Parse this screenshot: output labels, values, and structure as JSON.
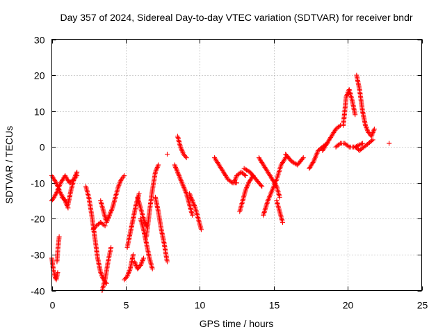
{
  "chart_data": {
    "type": "scatter",
    "title": "Day 357 of 2024, Sidereal Day-to-day VTEC variation (SDTVAR) for receiver bndr",
    "xlabel": "GPS time / hours",
    "ylabel": "SDTVAR / TECUs",
    "xlim": [
      0,
      25
    ],
    "ylim": [
      -40,
      30
    ],
    "x_ticks": [
      "0",
      "5",
      "10",
      "15",
      "20",
      "25"
    ],
    "y_ticks": [
      "-40",
      "-30",
      "-20",
      "-10",
      "0",
      "10",
      "20",
      "30"
    ],
    "x_tick_values": [
      0,
      5,
      10,
      15,
      20,
      25
    ],
    "y_tick_values": [
      -40,
      -30,
      -20,
      -10,
      0,
      10,
      20,
      30
    ],
    "grid": true,
    "marker": "+",
    "color": "#ff0000",
    "tracks": [
      {
        "x": [
          0.0,
          0.1,
          0.2,
          0.3,
          0.4
        ],
        "y": [
          -31,
          -34,
          -36,
          -37,
          -35
        ]
      },
      {
        "x": [
          0.35,
          0.42,
          0.5
        ],
        "y": [
          -32,
          -28,
          -25
        ]
      },
      {
        "x": [
          0.0,
          0.3,
          0.6,
          0.9,
          1.1
        ],
        "y": [
          -8,
          -10,
          -13,
          -15,
          -17
        ]
      },
      {
        "x": [
          0.0,
          0.3,
          0.6,
          0.9,
          1.2,
          1.5,
          1.7
        ],
        "y": [
          -15,
          -13,
          -10,
          -8,
          -10,
          -9,
          -8
        ]
      },
      {
        "x": [
          0.7,
          0.9,
          1.1,
          1.3,
          1.5,
          1.7
        ],
        "y": [
          -14,
          -15,
          -16,
          -12,
          -9,
          -7
        ]
      },
      {
        "x": [
          2.3,
          2.5,
          2.7,
          2.9,
          3.1,
          3.3,
          3.5,
          3.7
        ],
        "y": [
          -11,
          -14,
          -19,
          -25,
          -31,
          -35,
          -37,
          -38
        ]
      },
      {
        "x": [
          2.8,
          3.0,
          3.3,
          3.6
        ],
        "y": [
          -23,
          -22,
          -21,
          -22
        ]
      },
      {
        "x": [
          3.3,
          3.5,
          3.7,
          3.9,
          4.1,
          4.3,
          4.5,
          4.7,
          4.9
        ],
        "y": [
          -15,
          -18,
          -21,
          -19,
          -17,
          -14,
          -11,
          -9,
          -8
        ]
      },
      {
        "x": [
          3.4,
          3.6,
          3.8,
          4.0
        ],
        "y": [
          -40,
          -37,
          -32,
          -28
        ]
      },
      {
        "x": [
          4.9,
          5.1,
          5.3,
          5.5
        ],
        "y": [
          -37,
          -36,
          -34,
          -30
        ]
      },
      {
        "x": [
          5.1,
          5.3,
          5.5,
          5.7,
          5.9
        ],
        "y": [
          -28,
          -24,
          -20,
          -16,
          -13
        ]
      },
      {
        "x": [
          5.8,
          6.0,
          6.2,
          6.4
        ],
        "y": [
          -14,
          -17,
          -20,
          -22
        ]
      },
      {
        "x": [
          5.6,
          5.8,
          6.0,
          6.2
        ],
        "y": [
          -32,
          -34,
          -33,
          -31
        ]
      },
      {
        "x": [
          6.0,
          6.2,
          6.4,
          6.6,
          6.8
        ],
        "y": [
          -20,
          -23,
          -27,
          -31,
          -34
        ]
      },
      {
        "x": [
          6.4,
          6.6,
          6.8,
          7.0,
          7.2
        ],
        "y": [
          -25,
          -18,
          -12,
          -7,
          -5
        ]
      },
      {
        "x": [
          7.0,
          7.2,
          7.4,
          7.6,
          7.8
        ],
        "y": [
          -14,
          -18,
          -23,
          -27,
          -32
        ]
      },
      {
        "x": [
          7.8
        ],
        "y": [
          -2
        ]
      },
      {
        "x": [
          8.3,
          8.5,
          8.7,
          8.9,
          9.1,
          9.3,
          9.5
        ],
        "y": [
          -5,
          -7,
          -9,
          -11,
          -13,
          -16,
          -19
        ]
      },
      {
        "x": [
          8.5,
          8.7,
          8.9,
          9.1
        ],
        "y": [
          3,
          0,
          -2,
          -3
        ]
      },
      {
        "x": [
          9.3,
          9.5,
          9.7,
          9.9,
          10.1
        ],
        "y": [
          -13,
          -15,
          -17,
          -20,
          -23
        ]
      },
      {
        "x": [
          11.0,
          11.3,
          11.6,
          11.9,
          12.2,
          12.5
        ],
        "y": [
          -3,
          -5,
          -7,
          -9,
          -10,
          -10
        ]
      },
      {
        "x": [
          12.3,
          12.5,
          12.8,
          13.1
        ],
        "y": [
          -10,
          -8,
          -7,
          -8
        ]
      },
      {
        "x": [
          12.7,
          12.9,
          13.1,
          13.3,
          13.6
        ],
        "y": [
          -18,
          -15,
          -12,
          -10,
          -8
        ]
      },
      {
        "x": [
          13.0,
          13.4,
          13.8,
          14.2
        ],
        "y": [
          -6,
          -7,
          -9,
          -11
        ]
      },
      {
        "x": [
          14.0,
          14.3,
          14.6,
          14.9,
          15.2,
          15.4
        ],
        "y": [
          -3,
          -5,
          -7,
          -9,
          -11,
          -14
        ]
      },
      {
        "x": [
          14.3,
          14.6,
          14.9,
          15.2,
          15.5,
          15.8
        ],
        "y": [
          -19,
          -15,
          -12,
          -9,
          -5,
          -3
        ]
      },
      {
        "x": [
          15.2,
          15.4,
          15.6
        ],
        "y": [
          -15,
          -18,
          -21
        ]
      },
      {
        "x": [
          15.8,
          16.2,
          16.6,
          17.0
        ],
        "y": [
          -2,
          -4,
          -5,
          -3
        ]
      },
      {
        "x": [
          17.4,
          17.7,
          18.0,
          18.3,
          18.6
        ],
        "y": [
          -6,
          -4,
          -1,
          0,
          1
        ]
      },
      {
        "x": [
          18.3,
          18.6,
          18.9,
          19.2,
          19.5
        ],
        "y": [
          -1,
          1,
          3,
          5,
          6
        ]
      },
      {
        "x": [
          19.2,
          19.5,
          19.8,
          20.1,
          20.5,
          21.0
        ],
        "y": [
          0,
          1,
          1,
          0,
          0,
          1
        ]
      },
      {
        "x": [
          19.7,
          19.9,
          20.1,
          20.3,
          20.5
        ],
        "y": [
          6,
          14,
          16,
          13,
          9
        ]
      },
      {
        "x": [
          20.6,
          20.8,
          21.0,
          21.2,
          21.4,
          21.6,
          21.8
        ],
        "y": [
          20,
          16,
          10,
          6,
          4,
          3,
          5
        ]
      },
      {
        "x": [
          20.5,
          20.8,
          21.1,
          21.4,
          21.7
        ],
        "y": [
          0,
          -1,
          0,
          1,
          2
        ]
      },
      {
        "x": [
          22.8
        ],
        "y": [
          1
        ]
      }
    ]
  }
}
